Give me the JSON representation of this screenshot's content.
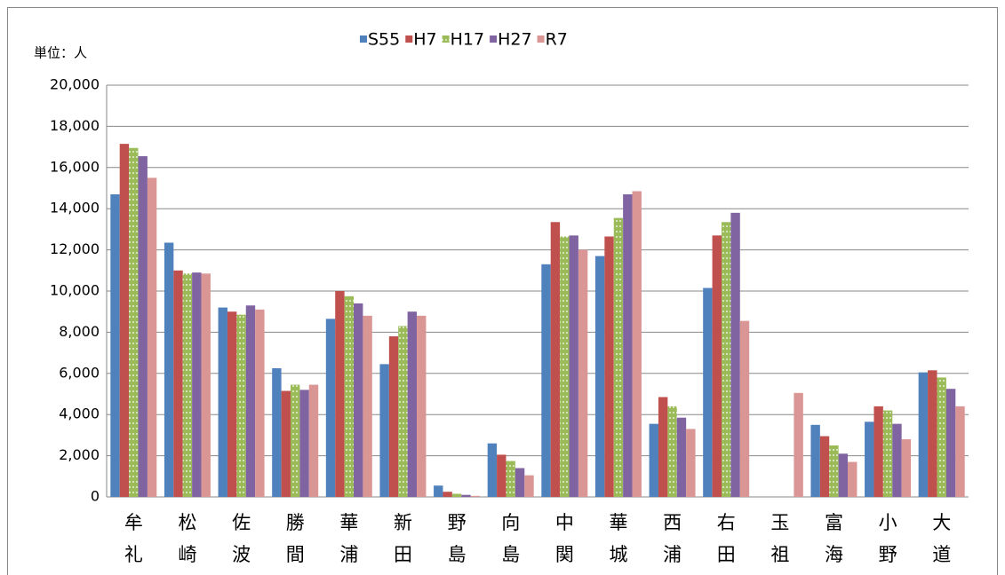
{
  "chart_data": {
    "type": "bar",
    "unit_label": "単位：人",
    "categories": [
      "牟礼",
      "松崎",
      "佐波",
      "勝間",
      "華浦",
      "新田",
      "野島",
      "向島",
      "中関",
      "華城",
      "西浦",
      "右田",
      "玉祖",
      "富海",
      "小野",
      "大道"
    ],
    "series": [
      {
        "name": "S55",
        "color": "#4f81bd",
        "values": [
          14700,
          12350,
          9200,
          6250,
          8650,
          6450,
          550,
          2600,
          11300,
          11700,
          3550,
          10150,
          null,
          3500,
          3650,
          6050
        ]
      },
      {
        "name": "H7",
        "color": "#c0504d",
        "values": [
          17150,
          11000,
          9000,
          5150,
          10000,
          7800,
          250,
          2050,
          13350,
          12650,
          4850,
          12700,
          null,
          2950,
          4400,
          6150
        ]
      },
      {
        "name": "H17",
        "color": "#9bbb59",
        "values": [
          16950,
          10850,
          8850,
          5450,
          9750,
          8300,
          150,
          1750,
          12650,
          13550,
          4400,
          13350,
          null,
          2500,
          4200,
          5800
        ]
      },
      {
        "name": "H27",
        "color": "#8064a2",
        "values": [
          16550,
          10900,
          9300,
          5200,
          9400,
          9000,
          100,
          1400,
          12700,
          14700,
          3850,
          13800,
          null,
          2100,
          3550,
          5250
        ]
      },
      {
        "name": "R7",
        "color": "#d99694",
        "values": [
          15500,
          10850,
          9100,
          5450,
          8800,
          8800,
          50,
          1050,
          12000,
          14850,
          3300,
          8550,
          5050,
          1700,
          2800,
          4400
        ]
      }
    ],
    "ylim": [
      0,
      20000
    ],
    "yticks": [
      0,
      {
        "value": 2000,
        "label": "2,000"
      },
      {
        "value": 4000,
        "label": "4,000"
      },
      {
        "value": 6000,
        "label": "6,000"
      },
      {
        "value": 8000,
        "label": "8,000"
      },
      {
        "value": 10000,
        "label": "10,000"
      },
      {
        "value": 12000,
        "label": "12,000"
      },
      {
        "value": 14000,
        "label": "14,000"
      },
      {
        "value": 16000,
        "label": "16,000"
      },
      {
        "value": 18000,
        "label": "18,000"
      },
      {
        "value": 20000,
        "label": "20,000"
      }
    ],
    "grid": true
  }
}
